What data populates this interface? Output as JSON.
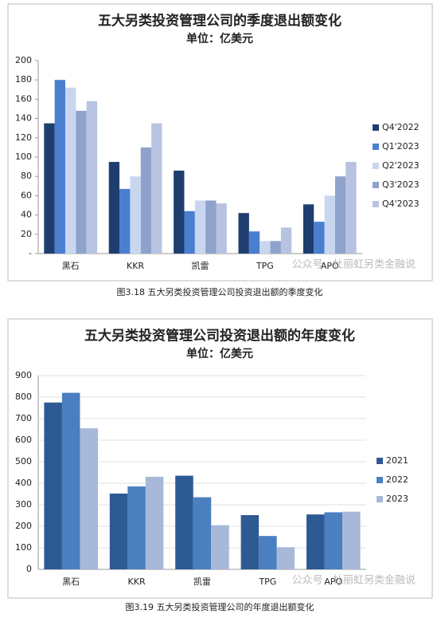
{
  "chart_data": [
    {
      "type": "bar",
      "title": "五大另类投资管理公司的季度退出额变化",
      "subtitle": "单位：亿美元",
      "categories": [
        "黑石",
        "KKR",
        "凯雷",
        "TPG",
        "APO"
      ],
      "series": [
        {
          "name": "Q4'2022",
          "color": "#1f3e70",
          "values": [
            135,
            95,
            86,
            42,
            51
          ]
        },
        {
          "name": "Q1'2023",
          "color": "#4a7fd0",
          "values": [
            180,
            67,
            44,
            23,
            33
          ]
        },
        {
          "name": "Q2'2023",
          "color": "#c8d7ef",
          "values": [
            172,
            80,
            55,
            13,
            60
          ]
        },
        {
          "name": "Q3'2023",
          "color": "#8fa2cc",
          "values": [
            148,
            110,
            55,
            13,
            80
          ]
        },
        {
          "name": "Q4'2023",
          "color": "#b7c3e0",
          "values": [
            158,
            135,
            52,
            27,
            95
          ]
        }
      ],
      "ylim": [
        0,
        200
      ],
      "yticks": [
        {
          "value": 0,
          "label": "-"
        },
        20,
        40,
        60,
        80,
        100,
        120,
        140,
        160,
        180,
        200
      ],
      "grid": false,
      "legend": "right",
      "watermark": "公众号 · 杜丽虹另类金融说",
      "caption": "图3.18 五大另类投资管理公司投资退出额的季度变化"
    },
    {
      "type": "bar",
      "title": "五大另类投资管理公司投资退出额的年度变化",
      "subtitle": "单位：亿美元",
      "categories": [
        "黑石",
        "KKR",
        "凯雷",
        "TPG",
        "APO"
      ],
      "series": [
        {
          "name": "2021",
          "color": "#2e5a94",
          "values": [
            775,
            352,
            435,
            252,
            255
          ]
        },
        {
          "name": "2022",
          "color": "#4a7fc0",
          "values": [
            820,
            385,
            335,
            155,
            265
          ]
        },
        {
          "name": "2023",
          "color": "#a8b8d8",
          "values": [
            655,
            430,
            205,
            103,
            268
          ]
        }
      ],
      "ylim": [
        0,
        900
      ],
      "yticks": [
        0,
        100,
        200,
        300,
        400,
        500,
        600,
        700,
        800,
        900
      ],
      "grid": true,
      "legend": "right",
      "watermark": "公众号 · 杜丽虹另类金融说",
      "caption": "图3.19 五大另类投资管理公司的年度退出额变化"
    }
  ]
}
